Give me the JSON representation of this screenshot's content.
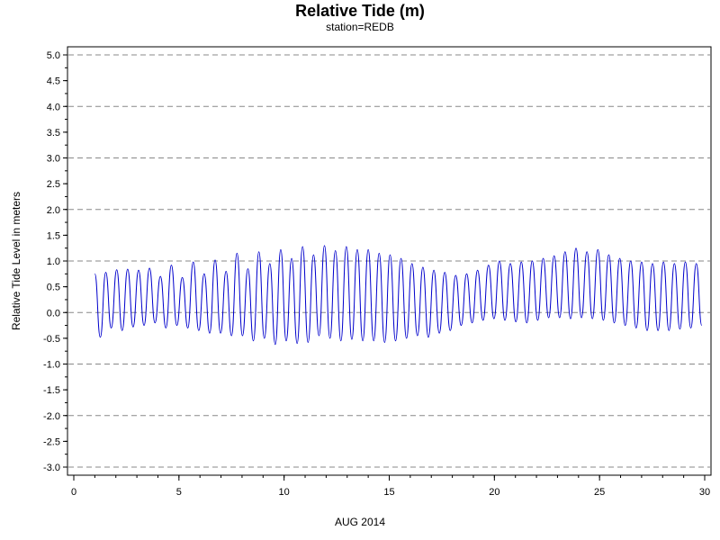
{
  "chart_data": {
    "type": "line",
    "title": "Relative Tide (m)",
    "subtitle": "station=REDB",
    "xlabel": "AUG 2014",
    "ylabel": "Relative Tide Level in meters",
    "xlim": [
      0,
      30
    ],
    "ylim": [
      -3.0,
      5.0
    ],
    "x_ticks": [
      0,
      5,
      10,
      15,
      20,
      25,
      30
    ],
    "y_ticks": [
      "5.0",
      "4.5",
      "4.0",
      "3.5",
      "3.0",
      "2.5",
      "2.0",
      "1.5",
      "1.0",
      "0.5",
      "0.0",
      "-0.5",
      "-1.0",
      "-1.5",
      "-2.0",
      "-2.5",
      "-3.0"
    ],
    "gridlines_y": [
      5.0,
      4.0,
      3.0,
      2.0,
      1.0,
      0.0,
      -1.0,
      -2.0,
      -3.0
    ],
    "grid": "horizontal dashed",
    "line_color": "#0000cc",
    "series": [
      {
        "x": [
          1.0,
          1.26,
          1.52,
          1.78,
          2.04,
          2.3,
          2.56,
          2.82,
          3.08,
          3.34,
          3.6,
          3.86,
          4.12,
          4.38,
          4.64,
          4.9,
          5.16,
          5.42,
          5.68,
          5.94,
          6.2,
          6.46,
          6.72,
          6.98,
          7.24,
          7.5,
          7.76,
          8.02,
          8.28,
          8.54,
          8.8,
          9.06,
          9.32,
          9.58,
          9.84,
          10.1,
          10.36,
          10.62,
          10.88,
          11.14,
          11.4,
          11.66,
          11.92,
          12.18,
          12.44,
          12.7,
          12.96,
          13.22,
          13.48,
          13.74,
          14.0,
          14.26,
          14.52,
          14.78,
          15.04,
          15.3,
          15.56,
          15.82,
          16.08,
          16.34,
          16.6,
          16.86,
          17.12,
          17.38,
          17.64,
          17.9,
          18.16,
          18.42,
          18.68,
          18.94,
          19.2,
          19.46,
          19.72,
          19.98,
          20.24,
          20.5,
          20.76,
          21.02,
          21.28,
          21.54,
          21.8,
          22.06,
          22.32,
          22.58,
          22.84,
          23.1,
          23.36,
          23.62,
          23.88,
          24.14,
          24.4,
          24.66,
          24.92,
          25.18,
          25.44,
          25.7,
          25.96,
          26.22,
          26.48,
          26.74,
          27.0,
          27.26,
          27.52,
          27.78,
          28.04,
          28.3,
          28.56,
          28.82,
          29.08,
          29.34,
          29.6,
          29.86
        ],
        "y": [
          0.75,
          -0.48,
          0.78,
          -0.3,
          0.83,
          -0.35,
          0.84,
          -0.28,
          0.82,
          -0.25,
          0.86,
          -0.2,
          0.7,
          -0.3,
          0.92,
          -0.25,
          0.68,
          -0.3,
          0.98,
          -0.35,
          0.75,
          -0.4,
          1.02,
          -0.4,
          0.8,
          -0.45,
          1.15,
          -0.45,
          0.85,
          -0.55,
          1.18,
          -0.5,
          0.95,
          -0.62,
          1.22,
          -0.55,
          1.05,
          -0.6,
          1.28,
          -0.58,
          1.12,
          -0.45,
          1.3,
          -0.5,
          1.2,
          -0.55,
          1.28,
          -0.52,
          1.22,
          -0.55,
          1.22,
          -0.55,
          1.15,
          -0.58,
          1.12,
          -0.55,
          1.05,
          -0.5,
          0.95,
          -0.45,
          0.88,
          -0.48,
          0.82,
          -0.4,
          0.78,
          -0.35,
          0.72,
          -0.25,
          0.75,
          -0.2,
          0.82,
          -0.15,
          0.92,
          -0.12,
          1.0,
          -0.15,
          0.95,
          -0.18,
          0.98,
          -0.2,
          1.0,
          -0.15,
          1.05,
          -0.1,
          1.1,
          -0.1,
          1.18,
          -0.12,
          1.25,
          -0.1,
          1.18,
          -0.12,
          1.22,
          -0.15,
          1.12,
          -0.2,
          1.05,
          -0.25,
          1.0,
          -0.3,
          0.98,
          -0.35,
          0.95,
          -0.35,
          0.98,
          -0.35,
          0.95,
          -0.32,
          0.98,
          -0.3,
          0.95,
          -0.25
        ]
      }
    ]
  }
}
